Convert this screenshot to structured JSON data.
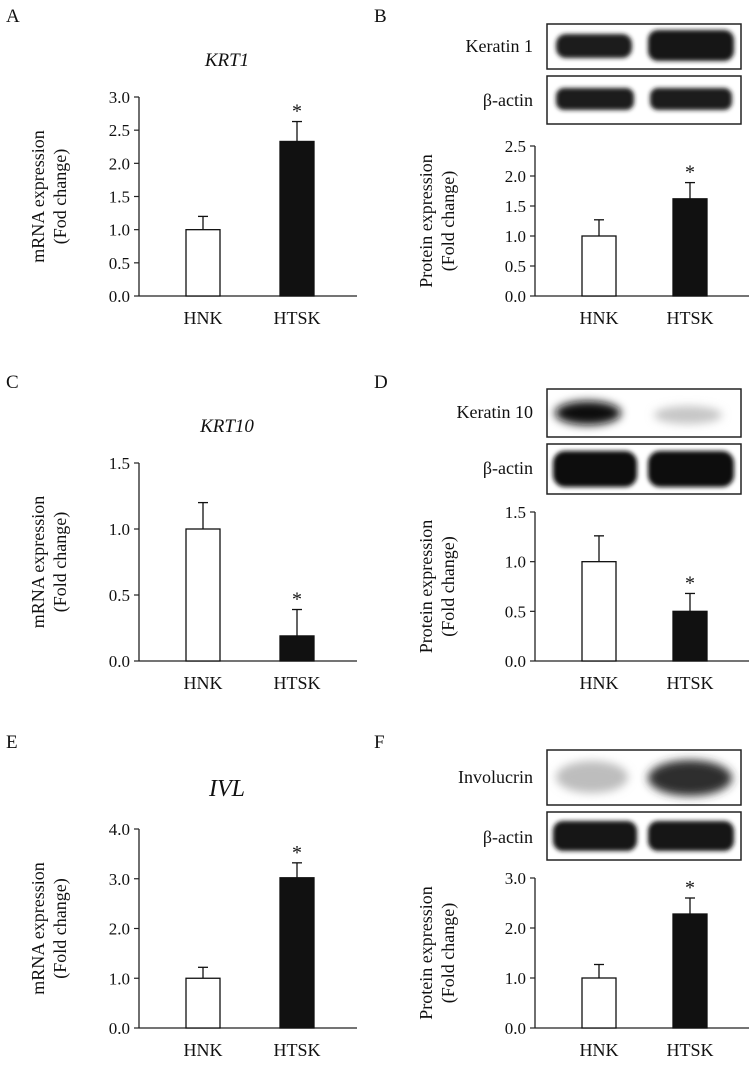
{
  "figure": {
    "panels": [
      {
        "letter": "A",
        "title": "KRT1"
      },
      {
        "letter": "B",
        "title": ""
      },
      {
        "letter": "C",
        "title": "KRT10"
      },
      {
        "letter": "D",
        "title": ""
      },
      {
        "letter": "E",
        "title": "IVL"
      },
      {
        "letter": "F",
        "title": ""
      }
    ],
    "blots": [
      {
        "panel": "B",
        "target_label": "Keratin 1",
        "control_label": "β-actin"
      },
      {
        "panel": "D",
        "target_label": "Keratin 10",
        "control_label": "β-actin"
      },
      {
        "panel": "F",
        "target_label": "Involucrin",
        "control_label": "β-actin"
      }
    ]
  },
  "chart_data": [
    {
      "panel": "A",
      "type": "bar",
      "title": "KRT1",
      "categories": [
        "HNK",
        "HTSK"
      ],
      "values": [
        1.0,
        2.33
      ],
      "errors": [
        0.2,
        0.3
      ],
      "significance": [
        "",
        "*"
      ],
      "ylabel_lines": [
        "mRNA expression",
        "(Fod change)"
      ],
      "ylim": [
        0,
        3.0
      ],
      "yticks": [
        "0.0",
        "0.5",
        "1.0",
        "1.5",
        "2.0",
        "2.5",
        "3.0"
      ],
      "bar_colors": [
        "#ffffff",
        "#111111"
      ]
    },
    {
      "panel": "B",
      "type": "bar",
      "title": "",
      "categories": [
        "HNK",
        "HTSK"
      ],
      "values": [
        1.0,
        1.62
      ],
      "errors": [
        0.27,
        0.27
      ],
      "significance": [
        "",
        "*"
      ],
      "ylabel_lines": [
        "Protein expression",
        "(Fold change)"
      ],
      "ylim": [
        0,
        2.5
      ],
      "yticks": [
        "0.0",
        "0.5",
        "1.0",
        "1.5",
        "2.0",
        "2.5"
      ],
      "bar_colors": [
        "#ffffff",
        "#111111"
      ]
    },
    {
      "panel": "C",
      "type": "bar",
      "title": "KRT10",
      "categories": [
        "HNK",
        "HTSK"
      ],
      "values": [
        1.0,
        0.19
      ],
      "errors": [
        0.2,
        0.2
      ],
      "significance": [
        "",
        "*"
      ],
      "ylabel_lines": [
        "mRNA expression",
        "(Fold change)"
      ],
      "ylim": [
        0,
        1.5
      ],
      "yticks": [
        "0.0",
        "0.5",
        "1.0",
        "1.5"
      ],
      "bar_colors": [
        "#ffffff",
        "#111111"
      ]
    },
    {
      "panel": "D",
      "type": "bar",
      "title": "",
      "categories": [
        "HNK",
        "HTSK"
      ],
      "values": [
        1.0,
        0.5
      ],
      "errors": [
        0.26,
        0.18
      ],
      "significance": [
        "",
        "*"
      ],
      "ylabel_lines": [
        "Protein expression",
        "(Fold change)"
      ],
      "ylim": [
        0,
        1.5
      ],
      "yticks": [
        "0.0",
        "0.5",
        "1.0",
        "1.5"
      ],
      "bar_colors": [
        "#ffffff",
        "#111111"
      ]
    },
    {
      "panel": "E",
      "type": "bar",
      "title": "IVL",
      "categories": [
        "HNK",
        "HTSK"
      ],
      "values": [
        1.0,
        3.02
      ],
      "errors": [
        0.22,
        0.3
      ],
      "significance": [
        "",
        "*"
      ],
      "ylabel_lines": [
        "mRNA expression",
        "(Fold change)"
      ],
      "ylim": [
        0,
        4.0
      ],
      "yticks": [
        "0.0",
        "1.0",
        "2.0",
        "3.0",
        "4.0"
      ],
      "bar_colors": [
        "#ffffff",
        "#111111"
      ]
    },
    {
      "panel": "F",
      "type": "bar",
      "title": "",
      "categories": [
        "HNK",
        "HTSK"
      ],
      "values": [
        1.0,
        2.28
      ],
      "errors": [
        0.27,
        0.32
      ],
      "significance": [
        "",
        "*"
      ],
      "ylabel_lines": [
        "Protein expression",
        "(Fold change)"
      ],
      "ylim": [
        0,
        3.0
      ],
      "yticks": [
        "0.0",
        "1.0",
        "2.0",
        "3.0"
      ],
      "bar_colors": [
        "#ffffff",
        "#111111"
      ]
    }
  ]
}
